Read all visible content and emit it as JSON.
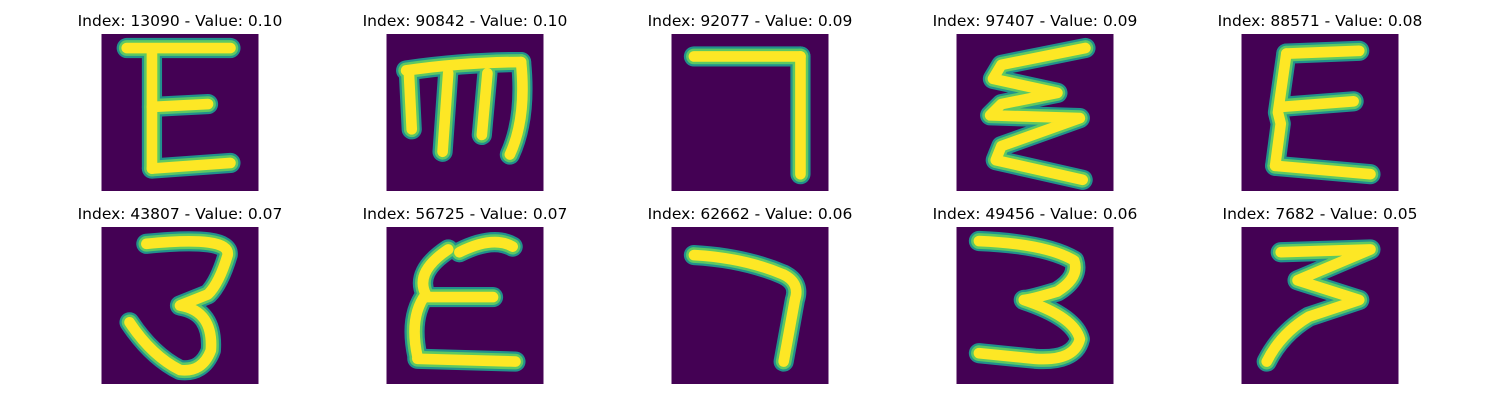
{
  "colors": {
    "background": "#440154",
    "stroke_mid": "#21918c",
    "stroke_edge": "#5ec962",
    "stroke_core": "#fde725"
  },
  "panels": [
    {
      "title": "Index: 13090 - Value: 0.10",
      "glyph": "E"
    },
    {
      "title": "Index: 90842 - Value: 0.10",
      "glyph": "m"
    },
    {
      "title": "Index: 92077 - Value: 0.09",
      "glyph": "7"
    },
    {
      "title": "Index: 97407 - Value: 0.09",
      "glyph": "zigzag"
    },
    {
      "title": "Index: 88571 - Value: 0.08",
      "glyph": "E"
    },
    {
      "title": "Index: 43807 - Value: 0.07",
      "glyph": "3"
    },
    {
      "title": "Index: 56725 - Value: 0.07",
      "glyph": "E"
    },
    {
      "title": "Index: 62662 - Value: 0.06",
      "glyph": "7"
    },
    {
      "title": "Index: 49456 - Value: 0.06",
      "glyph": "3"
    },
    {
      "title": "Index: 7682 - Value: 0.05",
      "glyph": "zigzag"
    }
  ]
}
